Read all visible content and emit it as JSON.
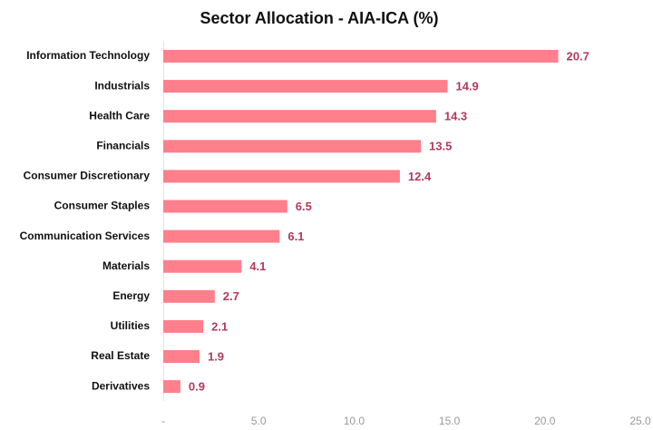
{
  "chart_data": {
    "type": "barh",
    "title": "Sector Allocation - AIA-ICA (%)",
    "categories": [
      "Information Technology",
      "Industrials",
      "Health Care",
      "Financials",
      "Consumer Discretionary",
      "Consumer Staples",
      "Communication Services",
      "Materials",
      "Energy",
      "Utilities",
      "Real Estate",
      "Derivatives"
    ],
    "values": [
      20.7,
      14.9,
      14.3,
      13.5,
      12.4,
      6.5,
      6.1,
      4.1,
      2.7,
      2.1,
      1.9,
      0.9
    ],
    "color": "#ff7f8c",
    "xlim": [
      0,
      25
    ],
    "xticks": [
      {
        "value": 0,
        "label": "-"
      },
      {
        "value": 5,
        "label": "5.0"
      },
      {
        "value": 10,
        "label": "10.0"
      },
      {
        "value": 15,
        "label": "15.0"
      },
      {
        "value": 20,
        "label": "20.0"
      },
      {
        "value": 25,
        "label": "25.0"
      }
    ]
  }
}
